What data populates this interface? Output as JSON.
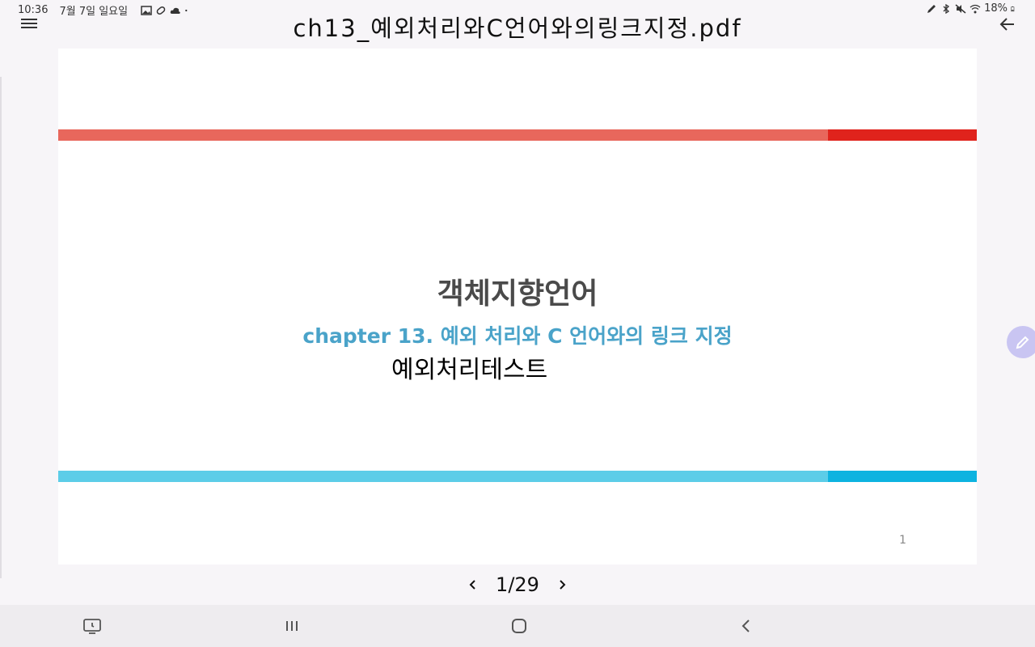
{
  "status_bar": {
    "time": "10:36",
    "date": "7월 7일 일요일",
    "battery": "18%"
  },
  "header": {
    "title": "ch13_예외처리와C언어와의링크지정.pdf"
  },
  "slide": {
    "title": "객체지향언어",
    "subtitle": "chapter 13. 예외 처리와 C 언어와의 링크 지정",
    "note": "예외처리테스트",
    "page_number": "1"
  },
  "pager": {
    "current": "1/29"
  },
  "colors": {
    "top_bar": "#e8675c",
    "top_bar_end": "#e0231c",
    "bottom_bar": "#5ccde8",
    "bottom_bar_end": "#0db3e0",
    "subtitle": "#4aa3c9",
    "fab": "#c9c5f2"
  },
  "icons": {
    "menu": "hamburger-icon",
    "back": "arrow-left-icon",
    "edit": "pencil-icon",
    "prev": "chevron-left-icon",
    "next": "chevron-right-icon"
  }
}
